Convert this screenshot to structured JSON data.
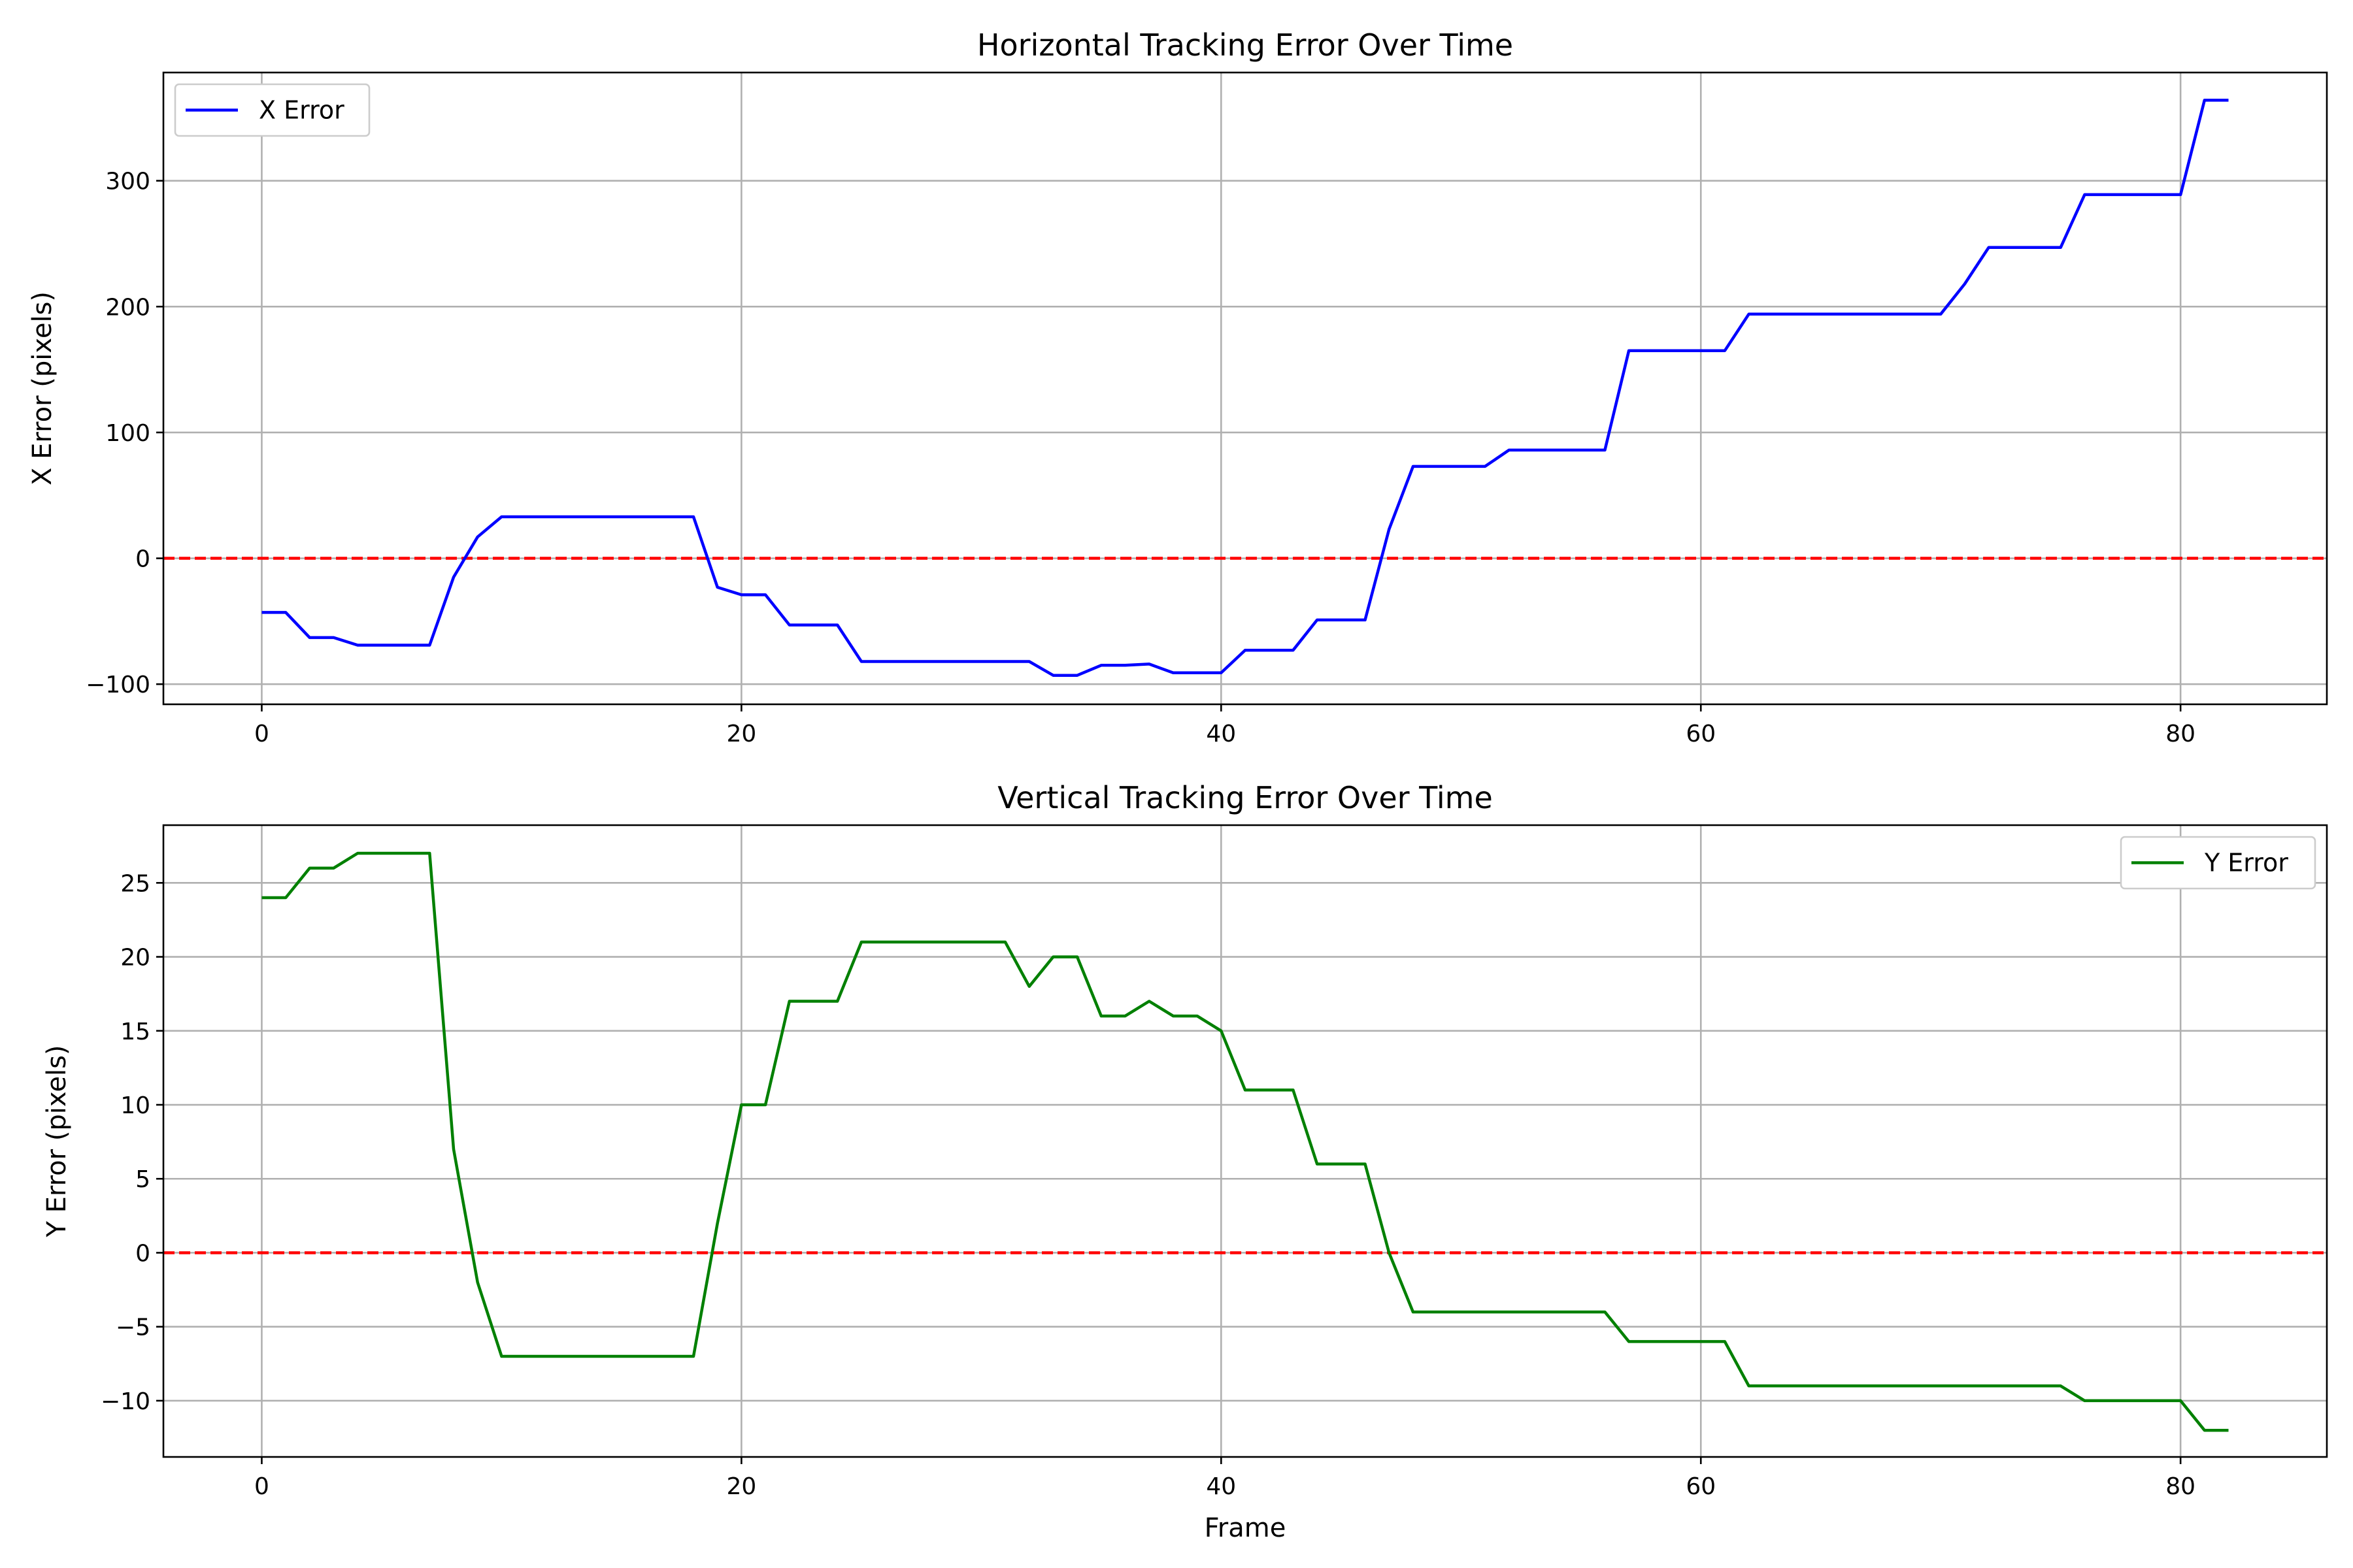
{
  "chart_data": [
    {
      "type": "line",
      "title": "Horizontal Tracking Error Over Time",
      "xlabel": "",
      "ylabel": "X Error (pixels)",
      "xlim": [
        -4.1,
        86.1
      ],
      "ylim": [
        -116,
        386
      ],
      "xticks": [
        0,
        20,
        40,
        60,
        80
      ],
      "yticks": [
        -100,
        0,
        100,
        200,
        300
      ],
      "grid": true,
      "legend_position": "upper left",
      "reference_line": {
        "y": 0,
        "color": "#ff0000",
        "style": "dashed"
      },
      "series": [
        {
          "name": "X Error",
          "color": "#0000ff",
          "x": [
            0,
            1,
            2,
            3,
            4,
            5,
            6,
            7,
            8,
            9,
            10,
            11,
            12,
            13,
            14,
            15,
            16,
            17,
            18,
            19,
            20,
            21,
            22,
            23,
            24,
            25,
            26,
            27,
            28,
            29,
            30,
            31,
            32,
            33,
            34,
            35,
            36,
            37,
            38,
            39,
            40,
            41,
            42,
            43,
            44,
            45,
            46,
            47,
            48,
            49,
            50,
            51,
            52,
            53,
            54,
            55,
            56,
            57,
            58,
            59,
            60,
            61,
            62,
            63,
            64,
            65,
            66,
            67,
            68,
            69,
            70,
            71,
            72,
            73,
            74,
            75,
            76,
            77,
            78,
            79,
            80,
            81,
            82
          ],
          "y": [
            -43,
            -43,
            -63,
            -63,
            -69,
            -69,
            -69,
            -69,
            -15,
            17,
            33,
            33,
            33,
            33,
            33,
            33,
            33,
            33,
            33,
            -23,
            -29,
            -29,
            -53,
            -53,
            -53,
            -82,
            -82,
            -82,
            -82,
            -82,
            -82,
            -82,
            -82,
            -93,
            -93,
            -85,
            -85,
            -84,
            -91,
            -91,
            -91,
            -73,
            -73,
            -73,
            -49,
            -49,
            -49,
            23,
            73,
            73,
            73,
            73,
            86,
            86,
            86,
            86,
            86,
            165,
            165,
            165,
            165,
            165,
            194,
            194,
            194,
            194,
            194,
            194,
            194,
            194,
            194,
            218,
            247,
            247,
            247,
            247,
            289,
            289,
            289,
            289,
            289,
            364,
            364
          ]
        }
      ]
    },
    {
      "type": "line",
      "title": "Vertical Tracking Error Over Time",
      "xlabel": "Frame",
      "ylabel": "Y Error (pixels)",
      "xlim": [
        -4.1,
        86.1
      ],
      "ylim": [
        -13.8,
        28.9
      ],
      "xticks": [
        0,
        20,
        40,
        60,
        80
      ],
      "yticks": [
        -10,
        -5,
        0,
        5,
        10,
        15,
        20,
        25
      ],
      "grid": true,
      "legend_position": "upper right",
      "reference_line": {
        "y": 0,
        "color": "#ff0000",
        "style": "dashed"
      },
      "series": [
        {
          "name": "Y Error",
          "color": "#008000",
          "x": [
            0,
            1,
            2,
            3,
            4,
            5,
            6,
            7,
            8,
            9,
            10,
            11,
            12,
            13,
            14,
            15,
            16,
            17,
            18,
            19,
            20,
            21,
            22,
            23,
            24,
            25,
            26,
            27,
            28,
            29,
            30,
            31,
            32,
            33,
            34,
            35,
            36,
            37,
            38,
            39,
            40,
            41,
            42,
            43,
            44,
            45,
            46,
            47,
            48,
            49,
            50,
            51,
            52,
            53,
            54,
            55,
            56,
            57,
            58,
            59,
            60,
            61,
            62,
            63,
            64,
            65,
            66,
            67,
            68,
            69,
            70,
            71,
            72,
            73,
            74,
            75,
            76,
            77,
            78,
            79,
            80,
            81,
            82
          ],
          "y": [
            24,
            24,
            26,
            26,
            27,
            27,
            27,
            27,
            7,
            -2,
            -7,
            -7,
            -7,
            -7,
            -7,
            -7,
            -7,
            -7,
            -7,
            2,
            10,
            10,
            17,
            17,
            17,
            21,
            21,
            21,
            21,
            21,
            21,
            21,
            18,
            20,
            20,
            16,
            16,
            17,
            16,
            16,
            15,
            11,
            11,
            11,
            6,
            6,
            6,
            0,
            -4,
            -4,
            -4,
            -4,
            -4,
            -4,
            -4,
            -4,
            -4,
            -6,
            -6,
            -6,
            -6,
            -6,
            -9,
            -9,
            -9,
            -9,
            -9,
            -9,
            -9,
            -9,
            -9,
            -9,
            -9,
            -9,
            -9,
            -9,
            -10,
            -10,
            -10,
            -10,
            -10,
            -12,
            -12
          ]
        }
      ]
    }
  ]
}
